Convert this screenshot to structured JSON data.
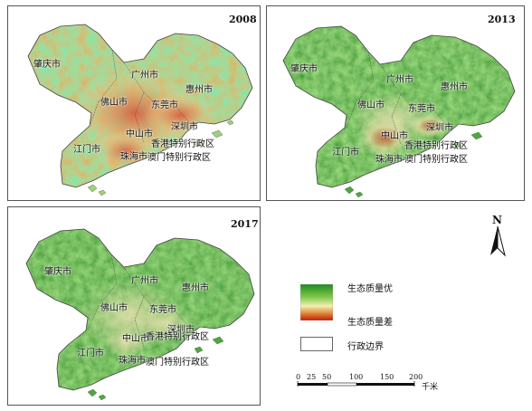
{
  "panels": [
    {
      "year": "2008",
      "theme": "mixed"
    },
    {
      "year": "2013",
      "theme": "green"
    },
    {
      "year": "2017",
      "theme": "green"
    }
  ],
  "cities": {
    "zhaoqing": "肇庆市",
    "guangzhou": "广州市",
    "huizhou": "惠州市",
    "foshan": "佛山市",
    "dongguan": "东莞市",
    "shenzhen": "深圳市",
    "zhongshan": "中山市",
    "jiangmen": "江门市",
    "zhuhai": "珠海市",
    "hongkong": "香港特别行政区",
    "macau": "澳门特别行政区"
  },
  "legend": {
    "good": "生态质量优",
    "poor": "生态质量差",
    "boundary": "行政边界"
  },
  "colors": {
    "good": "#2e8b2e",
    "mid": "#f4efb0",
    "poor": "#c01a0a"
  },
  "scale": {
    "ticks": [
      "0",
      "25",
      "50",
      "100",
      "150",
      "200"
    ],
    "unit": "千米"
  },
  "north": "N"
}
